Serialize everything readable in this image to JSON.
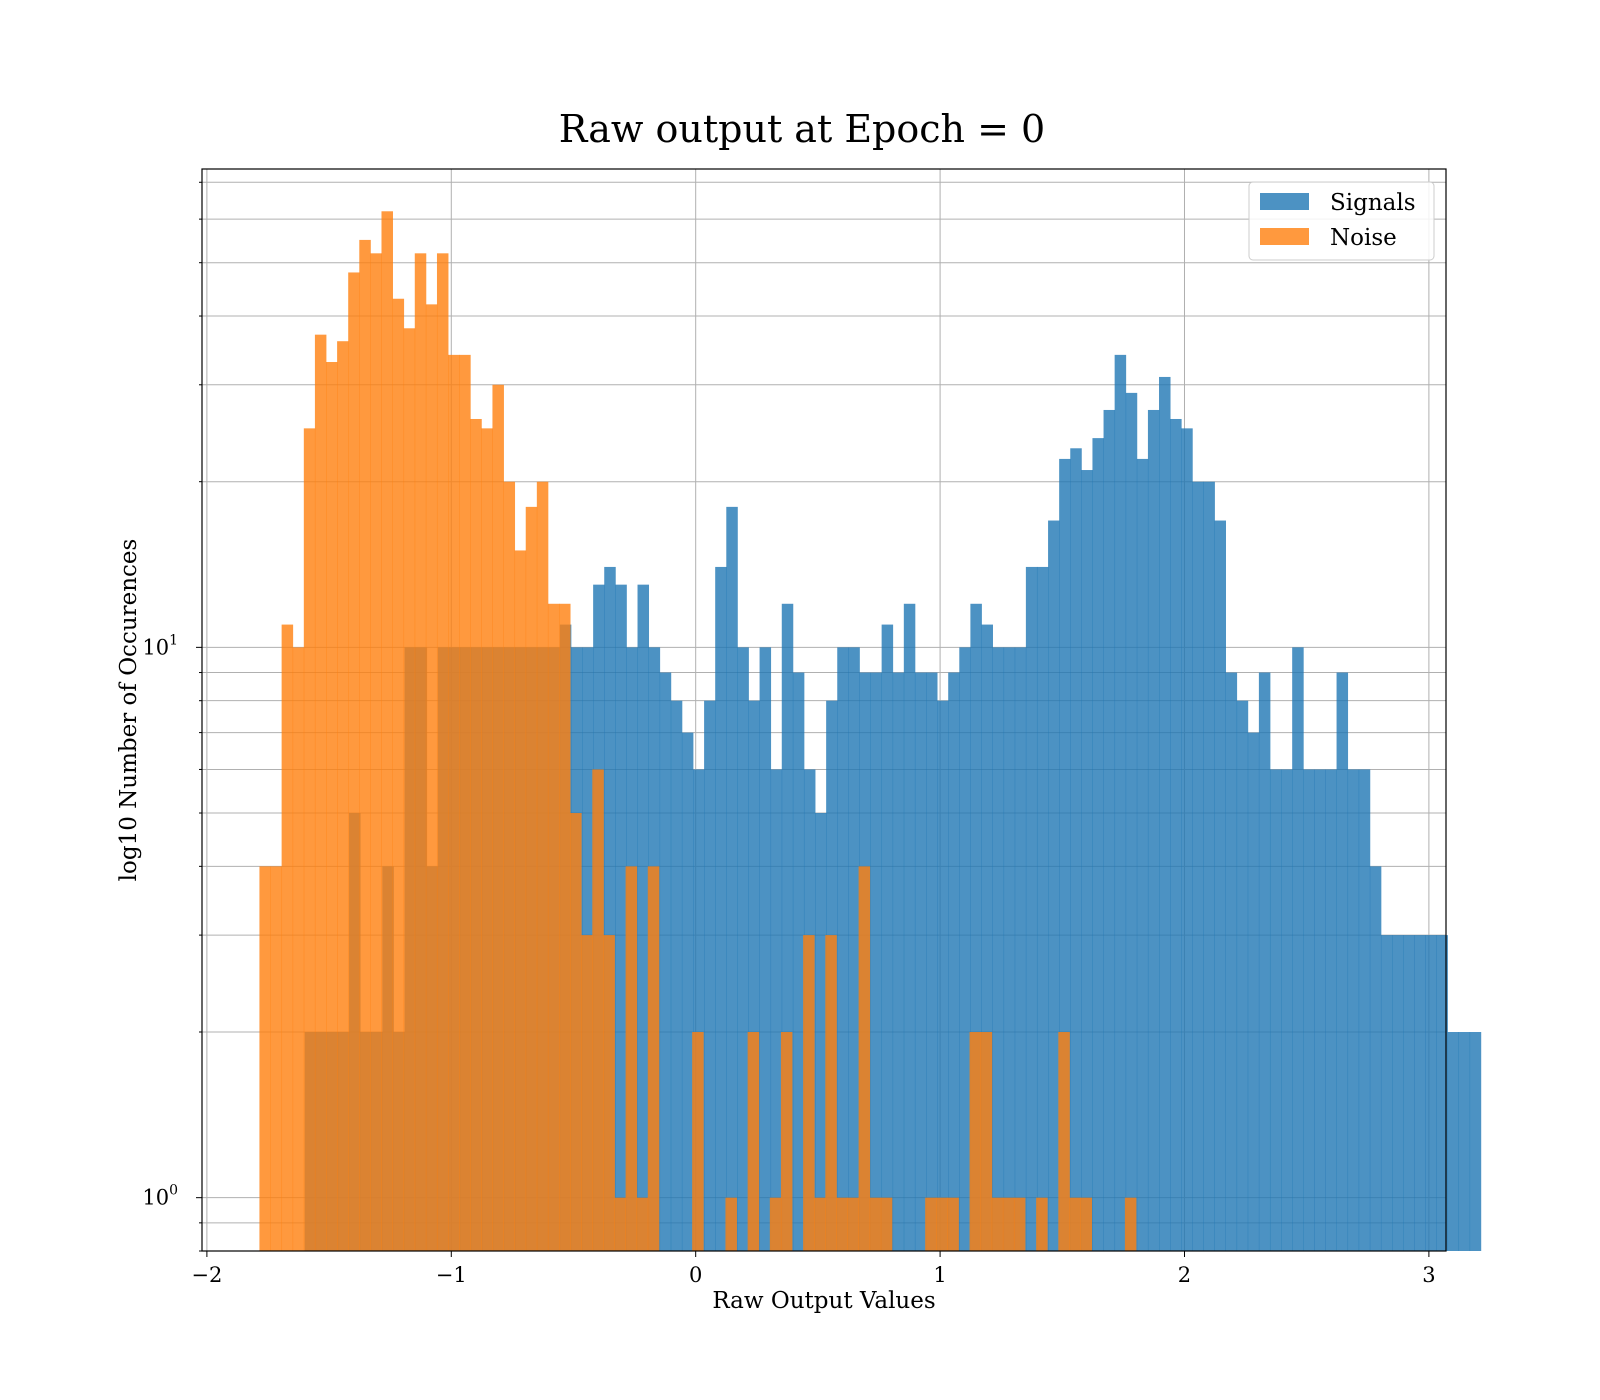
{
  "chart_data": {
    "type": "bar",
    "title": "Raw output at Epoch = 0",
    "xlabel": "Raw Output Values",
    "ylabel": "log10 Number of Occurences",
    "yscale": "log",
    "grid": true,
    "legend_position": "top-right",
    "xlim": [
      -2.02,
      3.07
    ],
    "ylim": [
      0.8,
      74
    ],
    "x_ticks": [
      {
        "value": -2,
        "label": "−2"
      },
      {
        "value": -1,
        "label": "−1"
      },
      {
        "value": 0,
        "label": "0"
      },
      {
        "value": 1,
        "label": "1"
      },
      {
        "value": 2,
        "label": "2"
      },
      {
        "value": 3,
        "label": "3"
      }
    ],
    "y_ticks": [
      {
        "value": 1,
        "base": "10",
        "exponent": "0"
      },
      {
        "value": 10,
        "base": "10",
        "exponent": "1"
      }
    ],
    "series": [
      {
        "name": "Signals",
        "color": "#1f77b4",
        "opacity": 0.8,
        "bin_start": -1.6,
        "bin_width": 0.0454,
        "values": [
          2,
          2,
          2,
          2,
          5,
          2,
          2,
          4,
          2,
          10,
          10,
          4,
          10,
          10,
          10,
          10,
          10,
          10,
          10,
          10,
          10,
          10,
          10,
          11,
          10,
          10,
          13,
          14,
          13,
          10,
          13,
          10,
          9,
          8,
          7,
          6,
          8,
          14,
          18,
          10,
          8,
          10,
          6,
          12,
          9,
          6,
          5,
          8,
          10,
          10,
          9,
          9,
          11,
          9,
          12,
          9,
          9,
          8,
          9,
          10,
          12,
          11,
          10,
          10,
          10,
          14,
          14,
          17,
          22,
          23,
          21,
          24,
          27,
          34,
          29,
          22,
          27,
          31,
          26,
          25,
          20,
          20,
          17,
          9,
          8,
          7,
          9,
          6,
          6,
          10,
          6,
          6,
          6,
          9,
          6,
          6,
          4,
          3,
          3,
          3,
          3,
          3,
          3,
          2,
          2,
          2,
          0,
          0,
          0,
          0,
          0,
          0,
          0,
          0,
          0,
          0,
          0,
          0,
          0
        ]
      },
      {
        "name": "Noise",
        "color": "#ff7f0e",
        "opacity": 0.8,
        "bin_start": -1.785,
        "bin_width": 0.0454,
        "values": [
          4,
          4,
          11,
          10,
          25,
          37,
          33,
          36,
          48,
          55,
          52,
          62,
          43,
          38,
          52,
          42,
          52,
          34,
          34,
          26,
          25,
          30,
          20,
          15,
          18,
          20,
          12,
          12,
          5,
          3,
          6,
          3,
          1,
          4,
          1,
          4,
          0,
          0,
          0,
          2,
          0,
          0,
          1,
          0,
          2,
          0,
          1,
          2,
          0,
          3,
          1,
          3,
          1,
          1,
          4,
          1,
          1,
          0,
          0,
          0,
          1,
          1,
          1,
          0,
          2,
          2,
          1,
          1,
          1,
          0,
          1,
          0,
          2,
          1,
          1,
          0,
          0,
          0,
          1,
          0,
          0,
          0,
          0,
          0,
          0,
          0,
          0,
          0,
          0,
          0,
          0,
          0
        ]
      }
    ]
  }
}
